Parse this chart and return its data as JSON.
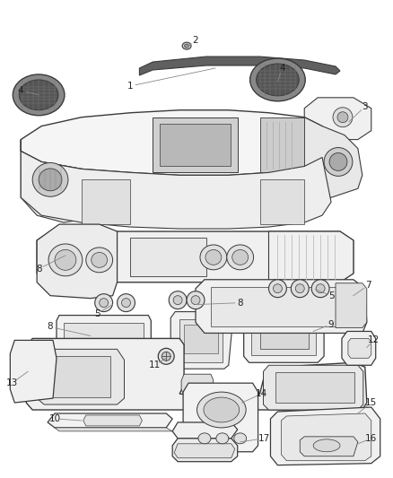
{
  "bg_color": "#ffffff",
  "line_color": "#3a3a3a",
  "label_color": "#222222",
  "leader_color": "#888888",
  "fig_width": 4.38,
  "fig_height": 5.33,
  "dpi": 100
}
